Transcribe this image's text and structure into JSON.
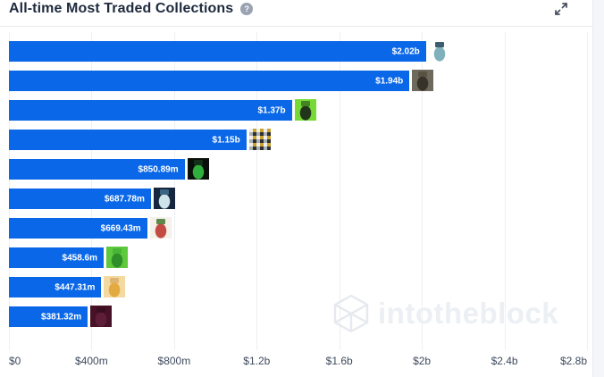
{
  "header": {
    "title": "All-time Most Traded Collections",
    "info_glyph": "?"
  },
  "watermark": {
    "text": "intotheblock"
  },
  "colors": {
    "bar": "#0a68e8",
    "gridline": "#edeff2",
    "axis_label": "#3f4b5e",
    "title": "#1e2b3e",
    "page_background": "#f5f6f8"
  },
  "chart_data": {
    "type": "bar",
    "orientation": "horizontal",
    "title": "All-time Most Traded Collections",
    "unit": "USD",
    "grid": true,
    "value_labels_inside_bars": true,
    "x_max_musd": 2800,
    "x_ticks": [
      "$0",
      "$400m",
      "$800m",
      "$1.2b",
      "$1.6b",
      "$2b",
      "$2.4b",
      "$2.8b"
    ],
    "items": [
      {
        "rank": 1,
        "value_label": "$2.02b",
        "value_musd": 2020,
        "icon": "pixel-punk-avatar-icon",
        "icon_style": {
          "pattern": "blob",
          "bg": "#ffffff",
          "fg": "#7fb0bc",
          "ac": "#274c5e"
        }
      },
      {
        "rank": 2,
        "value_label": "$1.94b",
        "value_musd": 1940,
        "icon": "ape-avatar-icon",
        "icon_style": {
          "pattern": "blob",
          "bg": "#6e695c",
          "fg": "#38332a",
          "ac": "#55503f"
        }
      },
      {
        "rank": 3,
        "value_label": "$1.37b",
        "value_musd": 1370,
        "icon": "green-mutant-avatar-icon",
        "icon_style": {
          "pattern": "blob",
          "bg": "#76d935",
          "fg": "#20351c",
          "ac": "#3f7a22"
        }
      },
      {
        "rank": 4,
        "value_label": "$1.15b",
        "value_musd": 1150,
        "icon": "thumbnail-mosaic-icon",
        "icon_style": {
          "pattern": "grid",
          "bg": "#efefef",
          "fg": "#caa22e",
          "ac": "#2f2f2f",
          "c4": "#aab0b8"
        }
      },
      {
        "rank": 5,
        "value_label": "$850.89m",
        "value_musd": 850.89,
        "icon": "green-glow-art-icon",
        "icon_style": {
          "pattern": "blob",
          "bg": "#0a0f0a",
          "fg": "#2fae3e",
          "ac": "#16341a"
        }
      },
      {
        "rank": 6,
        "value_label": "$687.78m",
        "value_musd": 687.78,
        "icon": "navy-character-avatar-icon",
        "icon_style": {
          "pattern": "blob",
          "bg": "#17263f",
          "fg": "#cfe3ea",
          "ac": "#3e6b8c"
        }
      },
      {
        "rank": 7,
        "value_label": "$669.43m",
        "value_musd": 669.43,
        "icon": "flower-hat-character-icon",
        "icon_style": {
          "pattern": "blob",
          "bg": "#f5f0ea",
          "fg": "#c24a42",
          "ac": "#4f7d3a"
        }
      },
      {
        "rank": 8,
        "value_label": "$458.6m",
        "value_musd": 458.6,
        "icon": "green-creature-avatar-icon",
        "icon_style": {
          "pattern": "blob",
          "bg": "#5fc93d",
          "fg": "#2e8f2a",
          "ac": "#47b335"
        }
      },
      {
        "rank": 9,
        "value_label": "$447.31m",
        "value_musd": 447.31,
        "icon": "yellow-character-avatar-icon",
        "icon_style": {
          "pattern": "blob",
          "bg": "#f4d9a0",
          "fg": "#e3aa3f",
          "ac": "#d9b06a"
        }
      },
      {
        "rank": 10,
        "value_label": "$381.32m",
        "value_musd": 381.32,
        "icon": "dark-maroon-art-icon",
        "icon_style": {
          "pattern": "blob",
          "bg": "#471227",
          "fg": "#5e1e3a",
          "ac": "#3a0e1f"
        }
      }
    ]
  }
}
